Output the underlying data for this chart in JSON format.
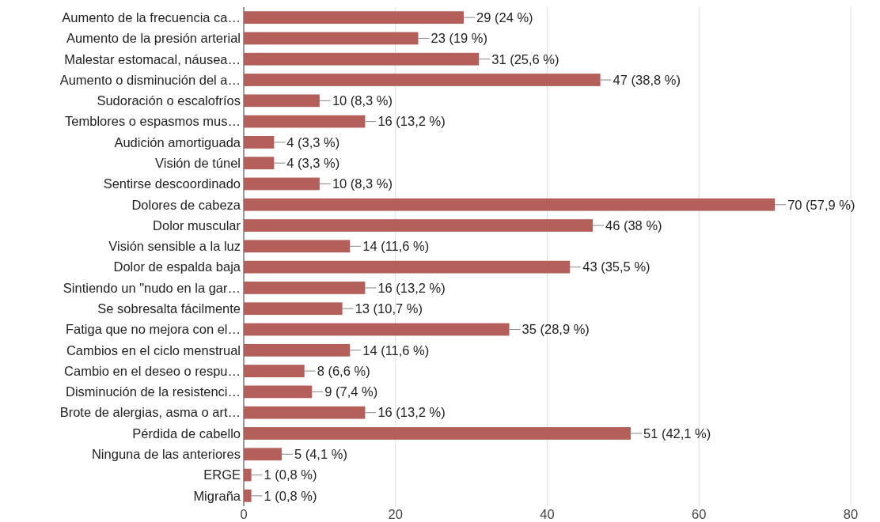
{
  "chart_data": {
    "type": "bar",
    "orientation": "horizontal",
    "categories": [
      "Aumento de la frecuencia ca…",
      "Aumento de la presión arterial",
      "Malestar estomacal, náusea…",
      "Aumento o disminución del a…",
      "Sudoración o escalofríos",
      "Temblores o espasmos mus…",
      "Audición amortiguada",
      "Visión de túnel",
      "Sentirse descoordinado",
      "Dolores de cabeza",
      "Dolor muscular",
      "Visión sensible a la luz",
      "Dolor de espalda baja",
      "Sintiendo un \"nudo en la gar…",
      "Se sobresalta fácilmente",
      "Fatiga que no mejora con el…",
      "Cambios en el ciclo menstrual",
      "Cambio en el deseo o respu…",
      "Disminución de la resistenci…",
      "Brote de alergias, asma o art…",
      "Pérdida de cabello",
      "Ninguna de las anteriores",
      "ERGE",
      "Migraña"
    ],
    "values": [
      29,
      23,
      31,
      47,
      10,
      16,
      4,
      4,
      10,
      70,
      46,
      14,
      43,
      16,
      13,
      35,
      14,
      8,
      9,
      16,
      51,
      5,
      1,
      1
    ],
    "value_labels": [
      "29 (24 %)",
      "23 (19 %)",
      "31 (25,6 %)",
      "47 (38,8 %)",
      "10 (8,3 %)",
      "16 (13,2 %)",
      "4 (3,3 %)",
      "4 (3,3 %)",
      "10 (8,3 %)",
      "70 (57,9 %)",
      "46 (38 %)",
      "14 (11,6 %)",
      "43 (35,5 %)",
      "16 (13,2 %)",
      "13 (10,7 %)",
      "35 (28,9 %)",
      "14 (11,6 %)",
      "8 (6,6 %)",
      "9 (7,4 %)",
      "16 (13,2 %)",
      "51 (42,1 %)",
      "5 (4,1 %)",
      "1 (0,8 %)",
      "1 (0,8 %)"
    ],
    "color": "#b55f5a",
    "xlim": [
      0,
      80
    ],
    "xticks": [
      0,
      20,
      40,
      60,
      80
    ],
    "grid": "x"
  }
}
